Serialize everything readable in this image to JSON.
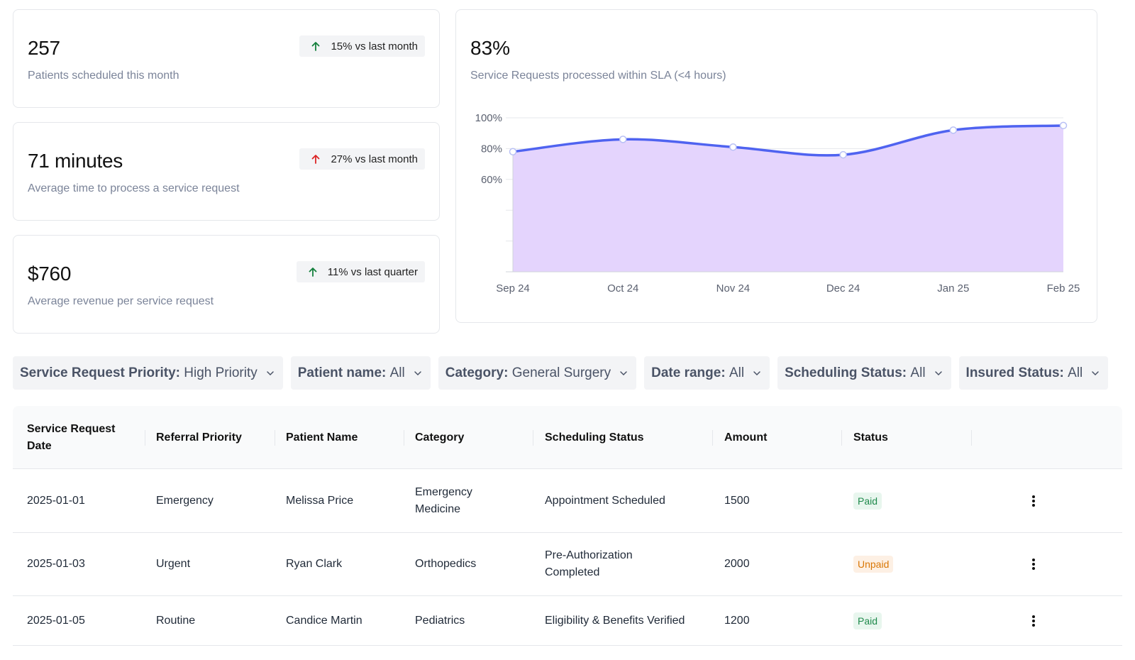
{
  "kpis": [
    {
      "value": "257",
      "description": "Patients scheduled this month",
      "trend": "up",
      "trend_color": "#15803d",
      "badge": "15% vs last month"
    },
    {
      "value": "71 minutes",
      "description": "Average time to process a service request",
      "trend": "up",
      "trend_color": "#dc2626",
      "badge": "27% vs last month"
    },
    {
      "value": "$760",
      "description": "Average revenue per service request",
      "trend": "up",
      "trend_color": "#15803d",
      "badge": "11% vs last quarter"
    }
  ],
  "sla": {
    "value": "83%",
    "description": "Service Requests processed within SLA (<4 hours)"
  },
  "chart_data": {
    "type": "area",
    "x": [
      "Sep 24",
      "Oct 24",
      "Nov 24",
      "Dec 24",
      "Jan 25",
      "Feb 25"
    ],
    "y_tick_labels": [
      "100%",
      "80%",
      "60%"
    ],
    "series": [
      {
        "values": [
          78,
          86,
          81,
          76,
          92,
          95
        ]
      }
    ],
    "ylim": [
      0,
      100
    ],
    "grid": true,
    "colors": {
      "line": "#4f63f0",
      "fill": "#e4d4fd",
      "point_fill": "#ffffff"
    }
  },
  "filters": [
    {
      "key": "Service Request Priority:",
      "value": "High Priority"
    },
    {
      "key": "Patient name:",
      "value": "All"
    },
    {
      "key": "Category:",
      "value": "General Surgery"
    },
    {
      "key": "Date range:",
      "value": "All"
    },
    {
      "key": "Scheduling Status:",
      "value": "All"
    },
    {
      "key": "Insured Status:",
      "value": "All"
    }
  ],
  "table": {
    "headers": {
      "date_line1": "Service Request",
      "date_line2": "Date",
      "priority": "Referral Priority",
      "patient": "Patient Name",
      "category": "Category",
      "scheduling": "Scheduling Status",
      "amount": "Amount",
      "status": "Status"
    },
    "rows": [
      {
        "date": "2025-01-01",
        "priority": "Emergency",
        "patient": "Melissa Price",
        "category_1": "Emergency",
        "category_2": "Medicine",
        "scheduling_1": "Appointment Scheduled",
        "scheduling_2": "",
        "amount": "1500",
        "status": "Paid"
      },
      {
        "date": "2025-01-03",
        "priority": "Urgent",
        "patient": "Ryan Clark",
        "category_1": "Orthopedics",
        "category_2": "",
        "scheduling_1": "Pre-Authorization",
        "scheduling_2": "Completed",
        "amount": "2000",
        "status": "Unpaid"
      },
      {
        "date": "2025-01-05",
        "priority": "Routine",
        "patient": "Candice Martin",
        "category_1": "Pediatrics",
        "category_2": "",
        "scheduling_1": "Eligibility & Benefits Verified",
        "scheduling_2": "",
        "amount": "1200",
        "status": "Paid"
      }
    ]
  }
}
